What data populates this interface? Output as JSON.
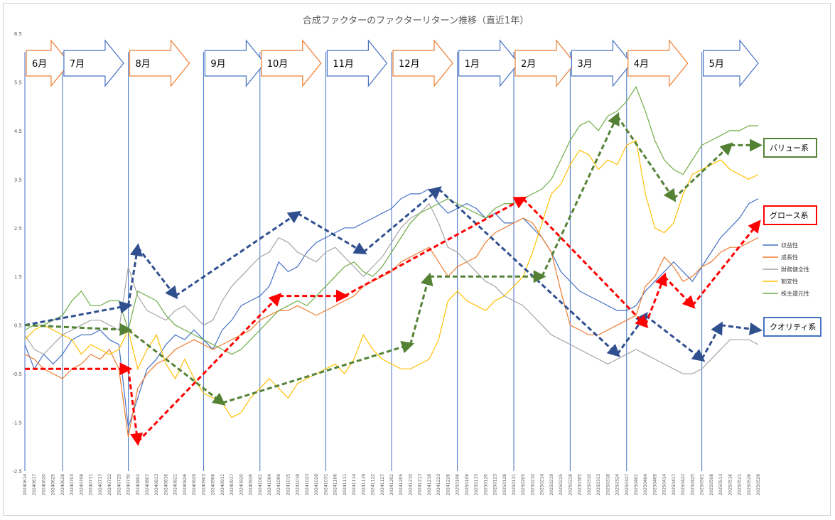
{
  "chart_data": {
    "type": "line",
    "title": "合成ファクターのファクターリターン推移（直近1年）",
    "ylim": [
      -2.5,
      6.5
    ],
    "yticks": [
      6.5,
      5.5,
      4.5,
      3.5,
      2.5,
      1.5,
      0.5,
      -0.5,
      -1.5,
      -2.5
    ],
    "x": [
      "20240614",
      "20240619",
      "20240624",
      "20240627",
      "20240702",
      "20240705",
      "20240710",
      "20240715",
      "20240718",
      "20240723",
      "20240726",
      "20240731",
      "20240805",
      "20240808",
      "20240813",
      "20240816",
      "20240821",
      "20240826",
      "20240829",
      "20240903",
      "20240906",
      "20240911",
      "20240917",
      "20240920",
      "20240926",
      "20241001",
      "20241004",
      "20241009",
      "20241015",
      "20241018",
      "20241023",
      "20241028",
      "20241031",
      "20241106",
      "20241111",
      "20241114",
      "20241119",
      "20241122",
      "20241127",
      "20241202",
      "20241205",
      "20241210",
      "20241213",
      "20241218",
      "20241223",
      "20241226",
      "20250106",
      "20250109",
      "20250115",
      "20250120",
      "20250123",
      "20250128",
      "20250131",
      "20250205",
      "20250210",
      "20250214",
      "20250219",
      "20250225",
      "20250228",
      "20250305",
      "20250310",
      "20250313",
      "20250318",
      "20250324",
      "20250327",
      "20250401",
      "20250404",
      "20250409",
      "20250414",
      "20250417",
      "20250422",
      "20250425",
      "20250501",
      "20250508",
      "20250513",
      "20250516",
      "20250521",
      "20250526",
      "20250529"
    ],
    "xticks_visible": [
      "20240614",
      "20240617",
      "20240620",
      "20240625",
      "20240628",
      "20240703",
      "20240708",
      "20240711",
      "20240717",
      "20240722",
      "20240725",
      "20240730",
      "20240802",
      "20240807",
      "20240813",
      "20240816",
      "20240821",
      "20240826",
      "20240829",
      "20240903",
      "20240906",
      "20240911",
      "20240917",
      "20240920",
      "20240926",
      "20241001",
      "20241004",
      "20241009",
      "20241015",
      "20241018",
      "20241023",
      "20241028",
      "20241031",
      "20241106",
      "20241111",
      "20241114",
      "20241119",
      "20241122",
      "20241127",
      "20241202",
      "20241205",
      "20241210",
      "20241213",
      "20241218",
      "20241223",
      "20241226",
      "20250106",
      "20250109",
      "20250115",
      "20250120",
      "20250123",
      "20250128",
      "20250131",
      "20250205",
      "20250210",
      "20250214",
      "20250219",
      "20250225",
      "20250228",
      "20250305",
      "20250310",
      "20250313",
      "20250318",
      "20250324",
      "20250327",
      "20250401",
      "20250404",
      "20250409",
      "20250414",
      "20250417",
      "20250422",
      "20250425",
      "20250501",
      "20250508",
      "20250513",
      "20250516",
      "20250521",
      "20250526",
      "20250529"
    ],
    "series": [
      {
        "name": "収益性",
        "color": "#4472c4",
        "values": [
          0.1,
          -0.4,
          -0.1,
          -0.3,
          -0.1,
          0.2,
          0.3,
          0.3,
          0.4,
          0.2,
          0.1,
          -1.6,
          -1.0,
          -0.4,
          -0.2,
          0.1,
          0.3,
          0.2,
          0.4,
          0.2,
          0.0,
          0.4,
          0.6,
          0.9,
          1.0,
          1.1,
          1.3,
          1.8,
          1.6,
          1.7,
          2.0,
          2.2,
          2.3,
          2.4,
          2.5,
          2.5,
          2.6,
          2.7,
          2.8,
          2.9,
          3.1,
          3.2,
          3.2,
          3.3,
          3.0,
          2.8,
          2.9,
          3.0,
          2.9,
          2.7,
          2.8,
          2.6,
          2.6,
          2.7,
          2.5,
          2.3,
          2.0,
          1.6,
          1.4,
          1.2,
          1.1,
          1.0,
          0.9,
          0.8,
          0.8,
          0.9,
          1.2,
          1.4,
          1.6,
          1.8,
          1.6,
          1.4,
          1.7,
          2.0,
          2.3,
          2.5,
          2.7,
          3.0,
          3.1
        ]
      },
      {
        "name": "成長性",
        "color": "#ed7d31",
        "values": [
          -0.1,
          -0.2,
          -0.4,
          -0.5,
          -0.6,
          -0.4,
          -0.3,
          -0.1,
          -0.2,
          0.0,
          -0.4,
          -1.8,
          -0.8,
          -0.5,
          -0.3,
          -0.2,
          0.0,
          0.1,
          0.2,
          0.1,
          0.0,
          0.1,
          0.2,
          0.3,
          0.4,
          0.6,
          0.7,
          0.8,
          0.8,
          0.9,
          0.8,
          0.7,
          0.8,
          0.9,
          1.0,
          1.1,
          1.3,
          1.4,
          1.5,
          1.6,
          1.8,
          1.9,
          2.0,
          2.1,
          1.8,
          1.5,
          1.7,
          1.8,
          1.9,
          2.2,
          2.4,
          2.5,
          2.6,
          2.7,
          2.6,
          2.3,
          2.0,
          1.2,
          0.5,
          0.4,
          0.3,
          0.3,
          0.4,
          0.5,
          0.6,
          0.7,
          1.3,
          1.5,
          1.9,
          1.7,
          1.4,
          1.5,
          1.7,
          1.8,
          2.0,
          2.1,
          2.1,
          2.2,
          2.3
        ]
      },
      {
        "name": "財務健全性",
        "color": "#a5a5a5",
        "values": [
          0.3,
          0.0,
          -0.1,
          0.1,
          0.3,
          0.4,
          0.5,
          0.6,
          0.6,
          0.5,
          0.4,
          1.7,
          1.1,
          0.8,
          0.7,
          0.6,
          0.8,
          0.9,
          0.7,
          0.5,
          0.6,
          1.0,
          1.3,
          1.5,
          1.7,
          1.9,
          2.0,
          2.3,
          2.2,
          2.0,
          1.9,
          1.8,
          2.0,
          2.1,
          1.9,
          1.7,
          1.5,
          1.7,
          1.9,
          2.2,
          2.5,
          2.7,
          2.8,
          3.0,
          2.6,
          2.1,
          2.0,
          1.8,
          1.6,
          1.4,
          1.3,
          1.1,
          1.0,
          0.9,
          0.7,
          0.5,
          0.3,
          0.2,
          0.1,
          0.0,
          -0.1,
          -0.2,
          -0.3,
          -0.2,
          -0.1,
          0.0,
          -0.1,
          -0.2,
          -0.3,
          -0.4,
          -0.5,
          -0.5,
          -0.4,
          -0.2,
          0.0,
          0.2,
          0.2,
          0.2,
          0.1
        ]
      },
      {
        "name": "割安性",
        "color": "#ffc000",
        "values": [
          0.2,
          0.4,
          0.5,
          0.4,
          0.3,
          0.2,
          -0.1,
          0.1,
          0.0,
          -0.1,
          0.0,
          0.4,
          -0.4,
          0.0,
          0.3,
          -0.3,
          -0.6,
          -0.2,
          -0.6,
          -0.9,
          -1.0,
          -1.1,
          -1.4,
          -1.3,
          -1.0,
          -0.8,
          -0.6,
          -0.8,
          -1.0,
          -0.7,
          -0.6,
          -0.5,
          -0.4,
          -0.3,
          -0.5,
          -0.2,
          0.3,
          0.0,
          -0.2,
          -0.3,
          -0.4,
          -0.4,
          -0.3,
          -0.2,
          0.2,
          1.0,
          1.2,
          1.0,
          0.9,
          0.8,
          1.0,
          1.1,
          1.3,
          1.5,
          2.0,
          2.6,
          3.2,
          3.4,
          3.8,
          4.1,
          4.0,
          3.7,
          3.9,
          3.8,
          4.2,
          4.3,
          3.2,
          2.5,
          2.4,
          2.6,
          3.2,
          3.6,
          3.7,
          3.8,
          3.9,
          3.7,
          3.6,
          3.5,
          3.6
        ]
      },
      {
        "name": "株主還元性",
        "color": "#70ad47",
        "values": [
          0.4,
          0.5,
          0.5,
          0.6,
          0.7,
          1.0,
          1.2,
          0.9,
          0.9,
          1.0,
          1.0,
          0.4,
          1.2,
          1.1,
          1.0,
          0.7,
          0.5,
          0.4,
          0.3,
          0.2,
          0.1,
          0.0,
          -0.1,
          0.0,
          0.2,
          0.4,
          0.6,
          0.8,
          0.9,
          1.0,
          0.9,
          1.1,
          1.3,
          1.5,
          1.7,
          1.8,
          1.6,
          1.5,
          1.7,
          2.0,
          2.3,
          2.6,
          2.8,
          2.9,
          3.0,
          3.1,
          3.0,
          2.9,
          2.8,
          2.7,
          2.9,
          3.0,
          3.0,
          3.1,
          3.2,
          3.3,
          3.5,
          3.9,
          4.3,
          4.6,
          4.7,
          4.5,
          4.8,
          4.9,
          5.1,
          5.4,
          4.9,
          4.3,
          3.9,
          3.7,
          3.6,
          3.9,
          4.2,
          4.3,
          4.4,
          4.5,
          4.5,
          4.6,
          4.6
        ]
      }
    ],
    "month_markers": [
      {
        "label": "6月",
        "color": "orange",
        "index": 0
      },
      {
        "label": "7月",
        "color": "blue",
        "index": 4
      },
      {
        "label": "8月",
        "color": "orange",
        "index": 11
      },
      {
        "label": "9月",
        "color": "blue",
        "index": 19
      },
      {
        "label": "10月",
        "color": "orange",
        "index": 25
      },
      {
        "label": "11月",
        "color": "blue",
        "index": 32
      },
      {
        "label": "12月",
        "color": "orange",
        "index": 39
      },
      {
        "label": "1月",
        "color": "blue",
        "index": 46
      },
      {
        "label": "2月",
        "color": "orange",
        "index": 52
      },
      {
        "label": "3月",
        "color": "blue",
        "index": 58
      },
      {
        "label": "4月",
        "color": "orange",
        "index": 64
      },
      {
        "label": "5月",
        "color": "blue",
        "index": 72
      }
    ],
    "trend_arrows": [
      {
        "group": "quality",
        "color": "#2f4f8f",
        "points": [
          [
            0,
            0.5
          ],
          [
            11,
            0.9
          ],
          [
            12,
            2.1
          ],
          [
            16,
            1.1
          ],
          [
            29,
            2.8
          ],
          [
            36,
            2.0
          ],
          [
            44,
            3.3
          ],
          [
            63,
            -0.1
          ],
          [
            66,
            0.7
          ],
          [
            72,
            -0.2
          ],
          [
            74,
            0.5
          ],
          [
            78,
            0.4
          ]
        ]
      },
      {
        "group": "growth",
        "color": "#ff0000",
        "points": [
          [
            0,
            -0.4
          ],
          [
            11,
            -0.4
          ],
          [
            12,
            -1.9
          ],
          [
            27,
            1.1
          ],
          [
            34,
            1.1
          ],
          [
            53,
            3.1
          ],
          [
            66,
            0.5
          ],
          [
            68,
            1.5
          ],
          [
            71,
            0.9
          ],
          [
            78,
            2.6
          ]
        ]
      },
      {
        "group": "value",
        "color": "#548235",
        "points": [
          [
            0,
            0.5
          ],
          [
            11,
            0.4
          ],
          [
            21,
            -1.1
          ],
          [
            41,
            0.1
          ],
          [
            43,
            1.5
          ],
          [
            55,
            1.5
          ],
          [
            63,
            4.8
          ],
          [
            69,
            3.1
          ],
          [
            75,
            4.2
          ],
          [
            78,
            4.2
          ]
        ]
      }
    ],
    "annotations": [
      {
        "text": "バリュー系",
        "color": "#548235"
      },
      {
        "text": "グロース系",
        "color": "#ff0000"
      },
      {
        "text": "クオリティ系",
        "color": "#4472c4"
      }
    ],
    "legend_position": "right"
  }
}
